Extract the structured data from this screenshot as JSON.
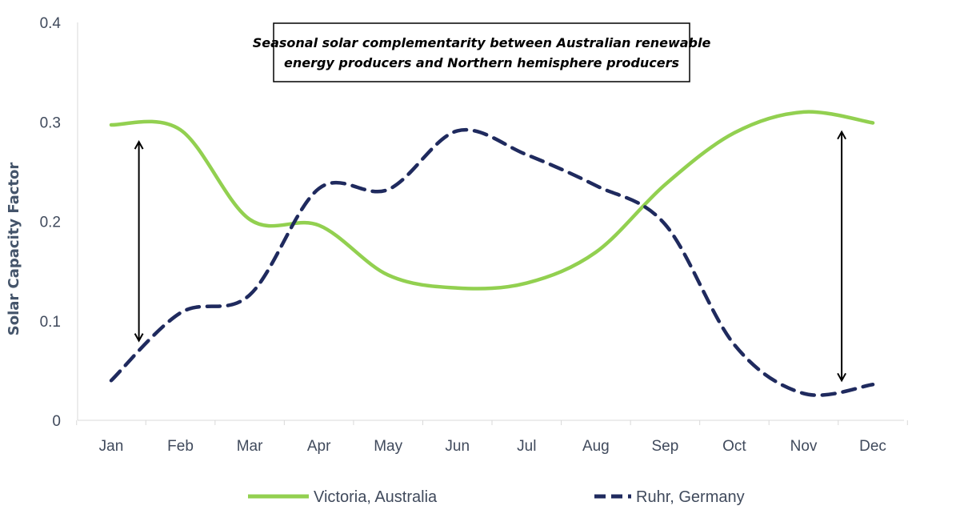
{
  "chart_data": {
    "type": "line",
    "title_lines": [
      "Seasonal solar complementarity between Australian renewable",
      "energy producers and Northern hemisphere producers"
    ],
    "xlabel": "",
    "ylabel": "Solar Capacity Factor",
    "categories": [
      "Jan",
      "Feb",
      "Mar",
      "Apr",
      "May",
      "Jun",
      "Jul",
      "Aug",
      "Sep",
      "Oct",
      "Nov",
      "Dec"
    ],
    "ylim": [
      0,
      0.4
    ],
    "yticks": [
      "0",
      "0.1",
      "0.2",
      "0.3",
      "0.4"
    ],
    "grid": false,
    "legend_position": "bottom",
    "series": [
      {
        "name": "Victoria, Australia",
        "color": "#92d050",
        "style": "solid",
        "values": [
          0.297,
          0.292,
          0.202,
          0.196,
          0.146,
          0.133,
          0.138,
          0.169,
          0.237,
          0.289,
          0.31,
          0.299
        ]
      },
      {
        "name": "Ruhr, Germany",
        "color": "#1f2a5e",
        "style": "dashed",
        "values": [
          0.04,
          0.108,
          0.126,
          0.233,
          0.232,
          0.291,
          0.267,
          0.236,
          0.197,
          0.076,
          0.027,
          0.036
        ]
      }
    ],
    "annotations": [
      {
        "type": "double-arrow",
        "at_x": 0.4,
        "y_from": 0.28,
        "y_to": 0.08
      },
      {
        "type": "double-arrow",
        "at_x": 10.55,
        "y_from": 0.29,
        "y_to": 0.04
      }
    ]
  }
}
